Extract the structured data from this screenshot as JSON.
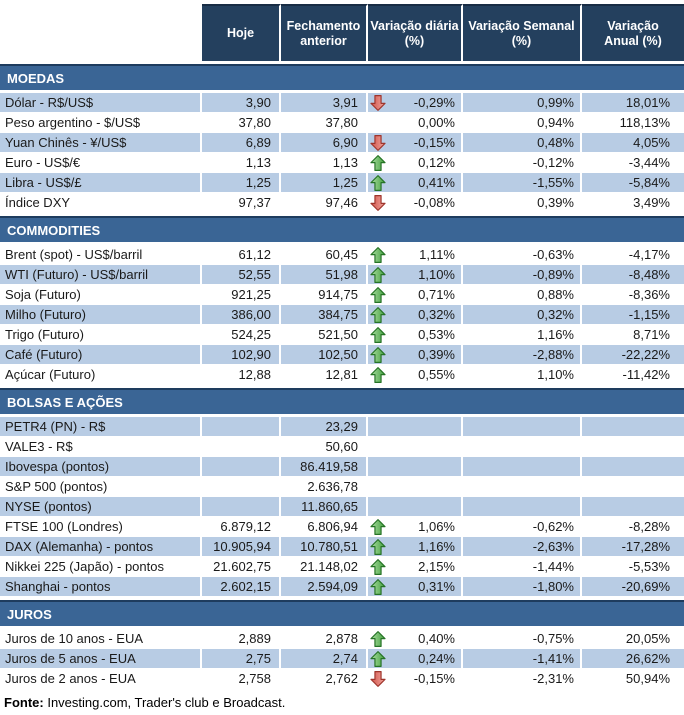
{
  "header": {
    "col0": "",
    "col1": "Hoje",
    "col2": "Fechamento\nanterior",
    "col3": "Variação diária\n(%)",
    "col4": "Variação Semanal\n(%)",
    "col5": "Variação\nAnual (%)"
  },
  "sections": [
    {
      "title": "MOEDAS",
      "rows": [
        {
          "label": "Dólar - R$/US$",
          "today": "3,90",
          "previous": "3,91",
          "arrow": "down",
          "daily": "-0,29%",
          "weekly": "0,99%",
          "annual": "18,01%"
        },
        {
          "label": "Peso argentino - $/US$",
          "today": "37,80",
          "previous": "37,80",
          "arrow": "",
          "daily": "0,00%",
          "weekly": "0,94%",
          "annual": "118,13%"
        },
        {
          "label": "Yuan Chinês - ¥/US$",
          "today": "6,89",
          "previous": "6,90",
          "arrow": "down",
          "daily": "-0,15%",
          "weekly": "0,48%",
          "annual": "4,05%"
        },
        {
          "label": "Euro - US$/€",
          "today": "1,13",
          "previous": "1,13",
          "arrow": "up",
          "daily": "0,12%",
          "weekly": "-0,12%",
          "annual": "-3,44%"
        },
        {
          "label": "Libra - US$/£",
          "today": "1,25",
          "previous": "1,25",
          "arrow": "up",
          "daily": "0,41%",
          "weekly": "-1,55%",
          "annual": "-5,84%"
        },
        {
          "label": "Índice DXY",
          "today": "97,37",
          "previous": "97,46",
          "arrow": "down",
          "daily": "-0,08%",
          "weekly": "0,39%",
          "annual": "3,49%"
        }
      ]
    },
    {
      "title": "COMMODITIES",
      "rows": [
        {
          "label": "Brent (spot) - US$/barril",
          "today": "61,12",
          "previous": "60,45",
          "arrow": "up",
          "daily": "1,11%",
          "weekly": "-0,63%",
          "annual": "-4,17%"
        },
        {
          "label": "WTI (Futuro) - US$/barril",
          "today": "52,55",
          "previous": "51,98",
          "arrow": "up",
          "daily": "1,10%",
          "weekly": "-0,89%",
          "annual": "-8,48%"
        },
        {
          "label": "Soja (Futuro)",
          "today": "921,25",
          "previous": "914,75",
          "arrow": "up",
          "daily": "0,71%",
          "weekly": "0,88%",
          "annual": "-8,36%"
        },
        {
          "label": "Milho (Futuro)",
          "today": "386,00",
          "previous": "384,75",
          "arrow": "up",
          "daily": "0,32%",
          "weekly": "0,32%",
          "annual": "-1,15%"
        },
        {
          "label": "Trigo (Futuro)",
          "today": "524,25",
          "previous": "521,50",
          "arrow": "up",
          "daily": "0,53%",
          "weekly": "1,16%",
          "annual": "8,71%"
        },
        {
          "label": "Café (Futuro)",
          "today": "102,90",
          "previous": "102,50",
          "arrow": "up",
          "daily": "0,39%",
          "weekly": "-2,88%",
          "annual": "-22,22%"
        },
        {
          "label": "Açúcar (Futuro)",
          "today": "12,88",
          "previous": "12,81",
          "arrow": "up",
          "daily": "0,55%",
          "weekly": "1,10%",
          "annual": "-11,42%"
        }
      ]
    },
    {
      "title": "BOLSAS E AÇÕES",
      "rows": [
        {
          "label": "PETR4 (PN) - R$",
          "today": "",
          "previous": "23,29",
          "arrow": "",
          "daily": "",
          "weekly": "",
          "annual": ""
        },
        {
          "label": "VALE3 - R$",
          "today": "",
          "previous": "50,60",
          "arrow": "",
          "daily": "",
          "weekly": "",
          "annual": ""
        },
        {
          "label": "Ibovespa (pontos)",
          "today": "",
          "previous": "86.419,58",
          "arrow": "",
          "daily": "",
          "weekly": "",
          "annual": ""
        },
        {
          "label": "S&P 500 (pontos)",
          "today": "",
          "previous": "2.636,78",
          "arrow": "",
          "daily": "",
          "weekly": "",
          "annual": ""
        },
        {
          "label": "NYSE (pontos)",
          "today": "",
          "previous": "11.860,65",
          "arrow": "",
          "daily": "",
          "weekly": "",
          "annual": ""
        },
        {
          "label": "FTSE 100 (Londres)",
          "today": "6.879,12",
          "previous": "6.806,94",
          "arrow": "up",
          "daily": "1,06%",
          "weekly": "-0,62%",
          "annual": "-8,28%"
        },
        {
          "label": "DAX (Alemanha) - pontos",
          "today": "10.905,94",
          "previous": "10.780,51",
          "arrow": "up",
          "daily": "1,16%",
          "weekly": "-2,63%",
          "annual": "-17,28%"
        },
        {
          "label": "Nikkei 225 (Japão) - pontos",
          "today": "21.602,75",
          "previous": "21.148,02",
          "arrow": "up",
          "daily": "2,15%",
          "weekly": "-1,44%",
          "annual": "-5,53%"
        },
        {
          "label": "Shanghai - pontos",
          "today": "2.602,15",
          "previous": "2.594,09",
          "arrow": "up",
          "daily": "0,31%",
          "weekly": "-1,80%",
          "annual": "-20,69%"
        }
      ]
    },
    {
      "title": "JUROS",
      "rows": [
        {
          "label": "Juros de 10 anos - EUA",
          "today": "2,889",
          "previous": "2,878",
          "arrow": "up",
          "daily": "0,40%",
          "weekly": "-0,75%",
          "annual": "20,05%"
        },
        {
          "label": "Juros de 5 anos - EUA",
          "today": "2,75",
          "previous": "2,74",
          "arrow": "up",
          "daily": "0,24%",
          "weekly": "-1,41%",
          "annual": "26,62%"
        },
        {
          "label": "Juros de 2 anos - EUA",
          "today": "2,758",
          "previous": "2,762",
          "arrow": "down",
          "daily": "-0,15%",
          "weekly": "-2,31%",
          "annual": "50,94%"
        }
      ]
    }
  ],
  "footer": {
    "label": "Fonte:",
    "text": " Investing.com, Trader's club e Broadcast."
  },
  "colors": {
    "header_bg": "#24405e",
    "section_bg": "#3a6595",
    "row_shaded_bg": "#b8cce4",
    "up_arrow_fill": "#4aa546",
    "up_arrow_stroke": "#267326",
    "down_arrow_fill": "#d5574c",
    "down_arrow_stroke": "#9e352c"
  }
}
